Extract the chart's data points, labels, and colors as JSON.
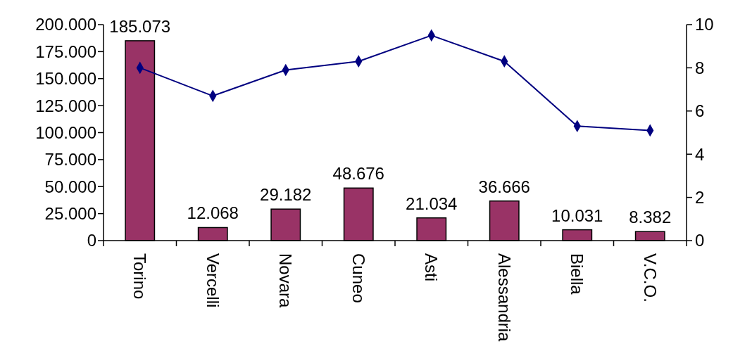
{
  "chart_data": {
    "type": "bar",
    "categories": [
      "Torino",
      "Vercelli",
      "Novara",
      "Cuneo",
      "Asti",
      "Alessandria",
      "Biella",
      "V.C.O."
    ],
    "series": [
      {
        "color": "#993366",
        "values": [
          185073,
          12068,
          29182,
          48676,
          21034,
          36666,
          10031,
          8382
        ],
        "value_labels": [
          "185.073",
          "12.068",
          "29.182",
          "48.676",
          "21.034",
          "36.666",
          "10.031",
          "8.382"
        ]
      },
      {
        "type": "line",
        "axis": "y2",
        "color": "#000080",
        "marker": "diamond",
        "values": [
          8.0,
          6.7,
          7.9,
          8.3,
          9.5,
          8.3,
          5.3,
          5.1
        ]
      }
    ],
    "ylim": [
      0,
      200000
    ],
    "yticks": [
      {
        "value": 0,
        "label": "0"
      },
      {
        "value": 25000,
        "label": "25.000"
      },
      {
        "value": 50000,
        "label": "50.000"
      },
      {
        "value": 75000,
        "label": "75.000"
      },
      {
        "value": 100000,
        "label": "100.000"
      },
      {
        "value": 125000,
        "label": "125.000"
      },
      {
        "value": 150000,
        "label": "150.000"
      },
      {
        "value": 175000,
        "label": "175.000"
      },
      {
        "value": 200000,
        "label": "200.000"
      }
    ],
    "y2lim": [
      0,
      10
    ],
    "y2ticks": [
      0,
      2,
      4,
      6,
      8,
      10
    ],
    "grid": false
  }
}
